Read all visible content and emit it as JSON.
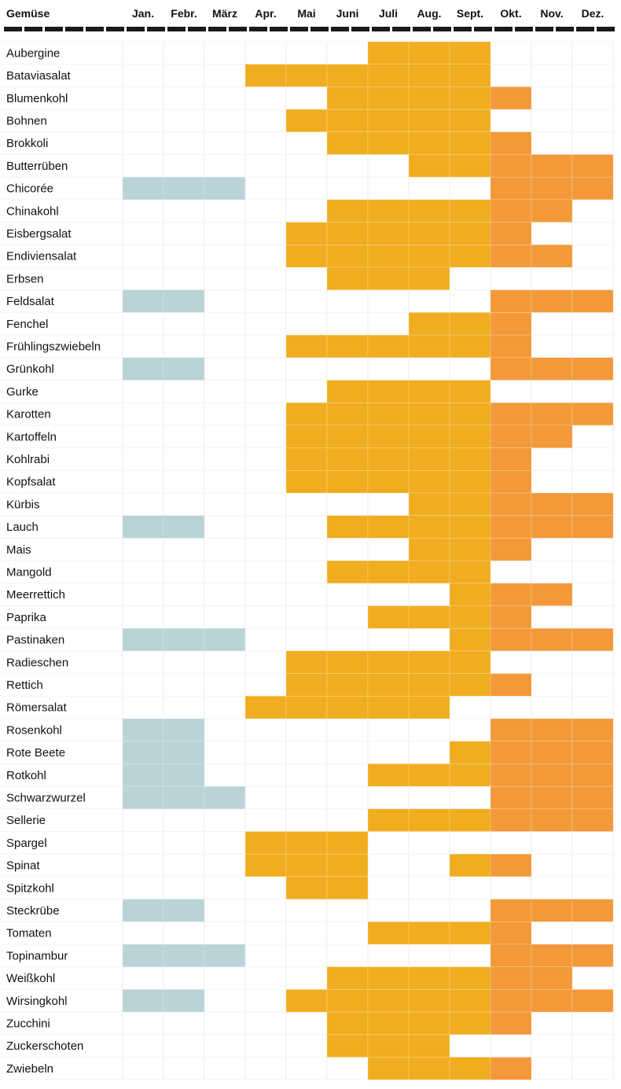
{
  "chart_data": {
    "type": "heatmap",
    "column_header": "Gemüse",
    "months": [
      "Jan.",
      "Febr.",
      "März",
      "Apr.",
      "Mai",
      "Juni",
      "Juli",
      "Aug.",
      "Sept.",
      "Okt.",
      "Nov.",
      "Dez."
    ],
    "colors": {
      "storage": "#b9d3d8",
      "summer": "#f0ad20",
      "autumn": "#f3993a",
      "header_rule": "#1a1a1a",
      "grid": "#ececec"
    },
    "grid": true,
    "rows": [
      {
        "name": "Aubergine",
        "values": [
          0,
          0,
          0,
          0,
          0,
          0,
          1,
          1,
          1,
          0,
          0,
          0
        ]
      },
      {
        "name": "Bataviasalat",
        "values": [
          0,
          0,
          0,
          1,
          1,
          1,
          1,
          1,
          1,
          0,
          0,
          0
        ]
      },
      {
        "name": "Blumenkohl",
        "values": [
          0,
          0,
          0,
          0,
          0,
          1,
          1,
          1,
          1,
          2,
          0,
          0
        ]
      },
      {
        "name": "Bohnen",
        "values": [
          0,
          0,
          0,
          0,
          1,
          1,
          1,
          1,
          1,
          0,
          0,
          0
        ]
      },
      {
        "name": "Brokkoli",
        "values": [
          0,
          0,
          0,
          0,
          0,
          1,
          1,
          1,
          1,
          2,
          0,
          0
        ]
      },
      {
        "name": "Butterrüben",
        "values": [
          0,
          0,
          0,
          0,
          0,
          0,
          0,
          1,
          1,
          2,
          2,
          2
        ]
      },
      {
        "name": "Chicorée",
        "values": [
          3,
          3,
          3,
          0,
          0,
          0,
          0,
          0,
          0,
          2,
          2,
          2
        ]
      },
      {
        "name": "Chinakohl",
        "values": [
          0,
          0,
          0,
          0,
          0,
          1,
          1,
          1,
          1,
          2,
          2,
          0
        ]
      },
      {
        "name": "Eisbergsalat",
        "values": [
          0,
          0,
          0,
          0,
          1,
          1,
          1,
          1,
          1,
          2,
          0,
          0
        ]
      },
      {
        "name": "Endiviensalat",
        "values": [
          0,
          0,
          0,
          0,
          1,
          1,
          1,
          1,
          1,
          2,
          2,
          0
        ]
      },
      {
        "name": "Erbsen",
        "values": [
          0,
          0,
          0,
          0,
          0,
          1,
          1,
          1,
          0,
          0,
          0,
          0
        ]
      },
      {
        "name": "Feldsalat",
        "values": [
          3,
          3,
          0,
          0,
          0,
          0,
          0,
          0,
          0,
          2,
          2,
          2
        ]
      },
      {
        "name": "Fenchel",
        "values": [
          0,
          0,
          0,
          0,
          0,
          0,
          0,
          1,
          1,
          2,
          0,
          0
        ]
      },
      {
        "name": "Frühlingszwiebeln",
        "values": [
          0,
          0,
          0,
          0,
          1,
          1,
          1,
          1,
          1,
          2,
          0,
          0
        ]
      },
      {
        "name": "Grünkohl",
        "values": [
          3,
          3,
          0,
          0,
          0,
          0,
          0,
          0,
          0,
          2,
          2,
          2
        ]
      },
      {
        "name": "Gurke",
        "values": [
          0,
          0,
          0,
          0,
          0,
          1,
          1,
          1,
          1,
          0,
          0,
          0
        ]
      },
      {
        "name": "Karotten",
        "values": [
          0,
          0,
          0,
          0,
          1,
          1,
          1,
          1,
          1,
          2,
          2,
          2
        ]
      },
      {
        "name": "Kartoffeln",
        "values": [
          0,
          0,
          0,
          0,
          1,
          1,
          1,
          1,
          1,
          2,
          2,
          0
        ]
      },
      {
        "name": "Kohlrabi",
        "values": [
          0,
          0,
          0,
          0,
          1,
          1,
          1,
          1,
          1,
          2,
          0,
          0
        ]
      },
      {
        "name": "Kopfsalat",
        "values": [
          0,
          0,
          0,
          0,
          1,
          1,
          1,
          1,
          1,
          2,
          0,
          0
        ]
      },
      {
        "name": "Kürbis",
        "values": [
          0,
          0,
          0,
          0,
          0,
          0,
          0,
          1,
          1,
          2,
          2,
          2
        ]
      },
      {
        "name": "Lauch",
        "values": [
          3,
          3,
          0,
          0,
          0,
          1,
          1,
          1,
          1,
          2,
          2,
          2
        ]
      },
      {
        "name": "Mais",
        "values": [
          0,
          0,
          0,
          0,
          0,
          0,
          0,
          1,
          1,
          2,
          0,
          0
        ]
      },
      {
        "name": "Mangold",
        "values": [
          0,
          0,
          0,
          0,
          0,
          1,
          1,
          1,
          1,
          0,
          0,
          0
        ]
      },
      {
        "name": "Meerrettich",
        "values": [
          0,
          0,
          0,
          0,
          0,
          0,
          0,
          0,
          1,
          2,
          2,
          0
        ]
      },
      {
        "name": "Paprika",
        "values": [
          0,
          0,
          0,
          0,
          0,
          0,
          1,
          1,
          1,
          2,
          0,
          0
        ]
      },
      {
        "name": "Pastinaken",
        "values": [
          3,
          3,
          3,
          0,
          0,
          0,
          0,
          0,
          1,
          2,
          2,
          2
        ]
      },
      {
        "name": "Radieschen",
        "values": [
          0,
          0,
          0,
          0,
          1,
          1,
          1,
          1,
          1,
          0,
          0,
          0
        ]
      },
      {
        "name": "Rettich",
        "values": [
          0,
          0,
          0,
          0,
          1,
          1,
          1,
          1,
          1,
          2,
          0,
          0
        ]
      },
      {
        "name": "Römersalat",
        "values": [
          0,
          0,
          0,
          1,
          1,
          1,
          1,
          1,
          0,
          0,
          0,
          0
        ]
      },
      {
        "name": "Rosenkohl",
        "values": [
          3,
          3,
          0,
          0,
          0,
          0,
          0,
          0,
          0,
          2,
          2,
          2
        ]
      },
      {
        "name": "Rote Beete",
        "values": [
          3,
          3,
          0,
          0,
          0,
          0,
          0,
          0,
          1,
          2,
          2,
          2
        ]
      },
      {
        "name": "Rotkohl",
        "values": [
          3,
          3,
          0,
          0,
          0,
          0,
          1,
          1,
          1,
          2,
          2,
          2
        ]
      },
      {
        "name": "Schwarzwurzel",
        "values": [
          3,
          3,
          3,
          0,
          0,
          0,
          0,
          0,
          0,
          2,
          2,
          2
        ]
      },
      {
        "name": "Sellerie",
        "values": [
          0,
          0,
          0,
          0,
          0,
          0,
          1,
          1,
          1,
          2,
          2,
          2
        ]
      },
      {
        "name": "Spargel",
        "values": [
          0,
          0,
          0,
          1,
          1,
          1,
          0,
          0,
          0,
          0,
          0,
          0
        ]
      },
      {
        "name": "Spinat",
        "values": [
          0,
          0,
          0,
          1,
          1,
          1,
          0,
          0,
          1,
          2,
          0,
          0
        ]
      },
      {
        "name": "Spitzkohl",
        "values": [
          0,
          0,
          0,
          0,
          1,
          1,
          0,
          0,
          0,
          0,
          0,
          0
        ]
      },
      {
        "name": "Steckrübe",
        "values": [
          3,
          3,
          0,
          0,
          0,
          0,
          0,
          0,
          0,
          2,
          2,
          2
        ]
      },
      {
        "name": "Tomaten",
        "values": [
          0,
          0,
          0,
          0,
          0,
          0,
          1,
          1,
          1,
          2,
          0,
          0
        ]
      },
      {
        "name": "Topinambur",
        "values": [
          3,
          3,
          3,
          0,
          0,
          0,
          0,
          0,
          0,
          2,
          2,
          2
        ]
      },
      {
        "name": "Weißkohl",
        "values": [
          0,
          0,
          0,
          0,
          0,
          1,
          1,
          1,
          1,
          2,
          2,
          0
        ]
      },
      {
        "name": "Wirsingkohl",
        "values": [
          3,
          3,
          0,
          0,
          1,
          1,
          1,
          1,
          1,
          2,
          2,
          2
        ]
      },
      {
        "name": "Zucchini",
        "values": [
          0,
          0,
          0,
          0,
          0,
          1,
          1,
          1,
          1,
          2,
          0,
          0
        ]
      },
      {
        "name": "Zuckerschoten",
        "values": [
          0,
          0,
          0,
          0,
          0,
          1,
          1,
          1,
          0,
          0,
          0,
          0
        ]
      },
      {
        "name": "Zwiebeln",
        "values": [
          0,
          0,
          0,
          0,
          0,
          0,
          1,
          1,
          1,
          2,
          0,
          0
        ]
      }
    ]
  }
}
